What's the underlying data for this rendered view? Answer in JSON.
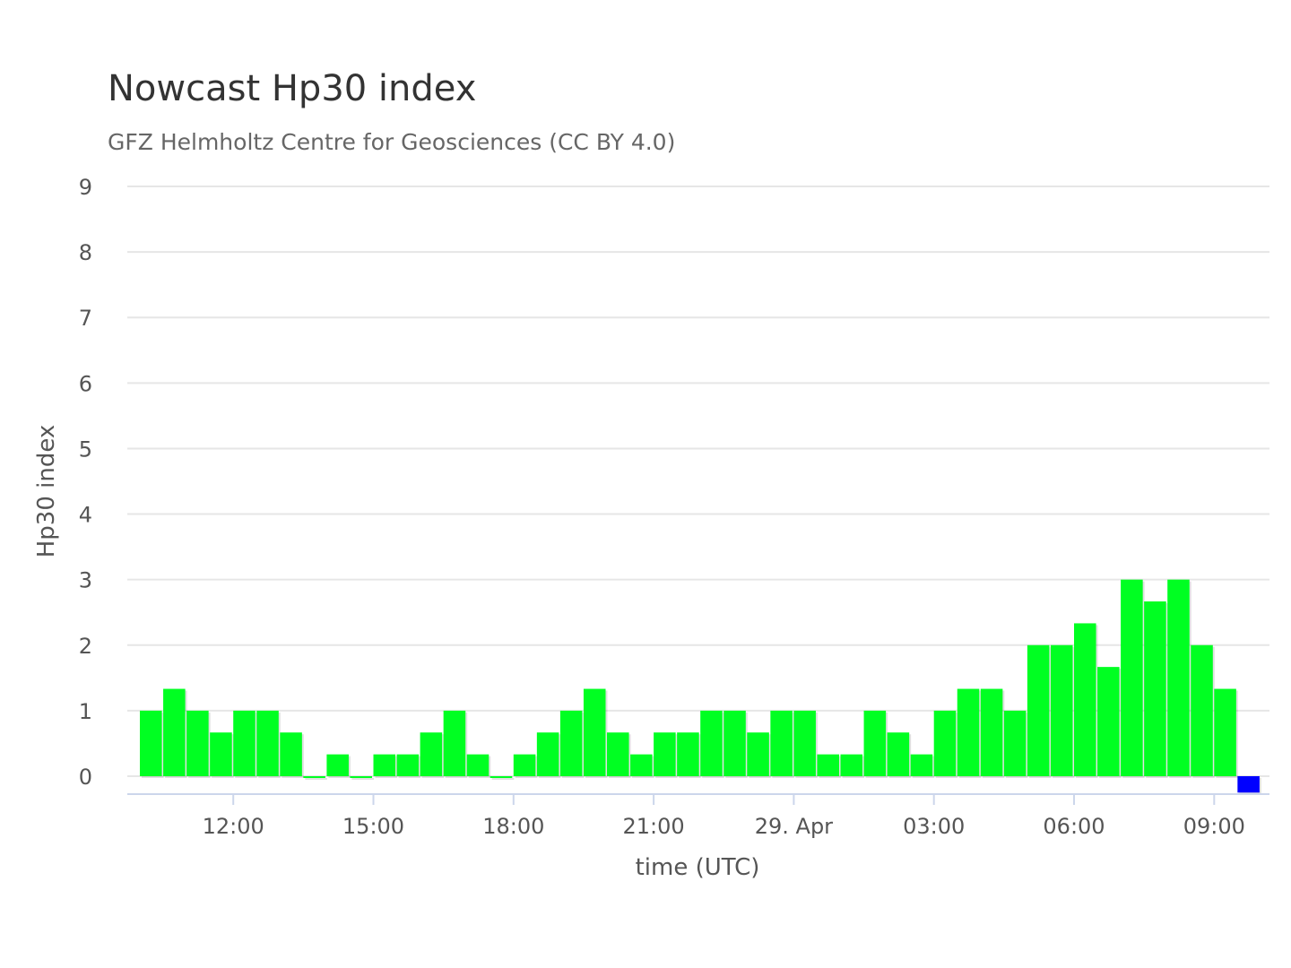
{
  "chart_data": {
    "type": "bar",
    "title": "Nowcast Hp30 index",
    "subtitle": "GFZ Helmholtz Centre for Geosciences (CC BY 4.0)",
    "xlabel": "time (UTC)",
    "ylabel": "Hp30 index",
    "ylim": [
      0,
      9
    ],
    "y_ticks": [
      "0",
      "1",
      "2",
      "3",
      "4",
      "5",
      "6",
      "7",
      "8",
      "9"
    ],
    "x_ticks": [
      "12:00",
      "15:00",
      "18:00",
      "21:00",
      "29. Apr",
      "03:00",
      "06:00",
      "09:00"
    ],
    "x_start": "2025-04-28 10:00 UTC",
    "interval_minutes": 30,
    "grid": true,
    "legend": false,
    "values": [
      1,
      1.333,
      1,
      0.667,
      1,
      1,
      0.667,
      0,
      0.333,
      0,
      0.333,
      0.333,
      0.667,
      1,
      0.333,
      0,
      0.333,
      0.667,
      1,
      1.333,
      0.667,
      0.333,
      0.667,
      0.667,
      1,
      1,
      0.667,
      1,
      1,
      0.333,
      0.333,
      1,
      0.667,
      0.333,
      1,
      1.333,
      1.333,
      1,
      2,
      2,
      2.333,
      1.667,
      3,
      2.667,
      3,
      2,
      1.333,
      -0.25
    ],
    "colors": {
      "bar": "#00ff22",
      "last_bar": "#0000ff",
      "grid": "#e6e6e6",
      "axis": "#ccd6eb"
    }
  }
}
